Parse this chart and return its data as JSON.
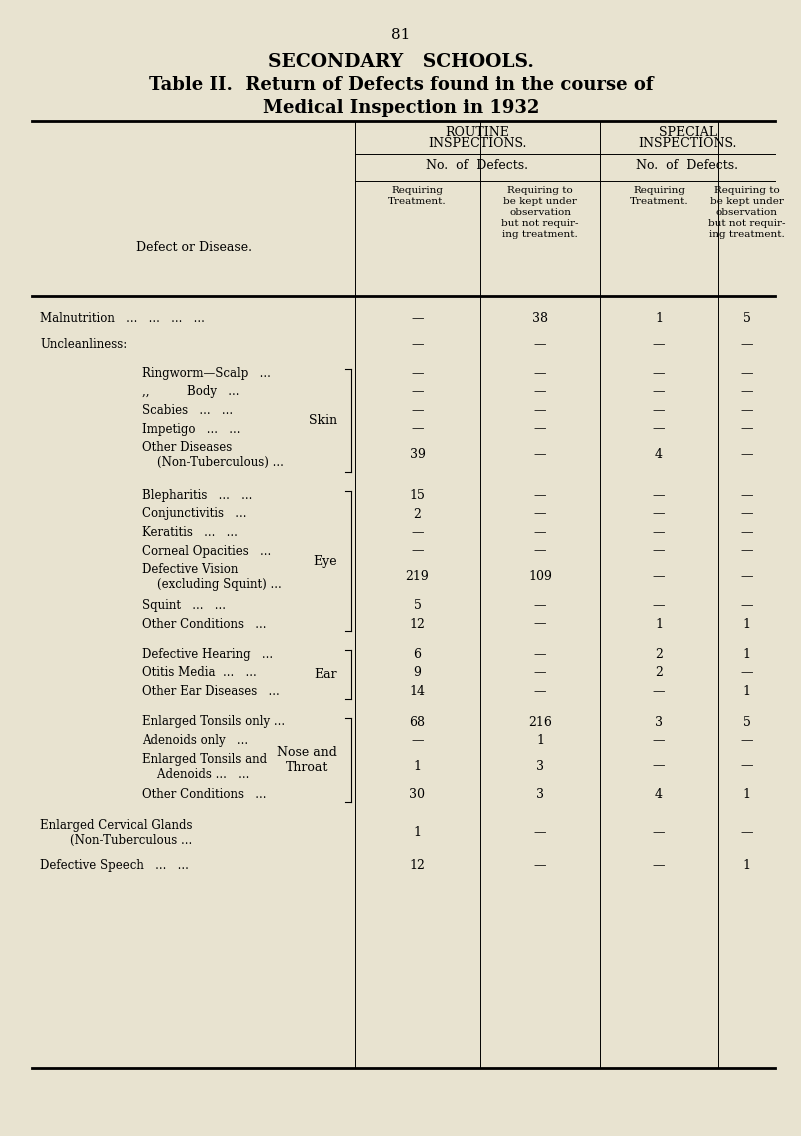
{
  "page_number": "81",
  "title1": "SECONDARY   SCHOOLS.",
  "title2": "Table II.  Return of Defects found in the course of",
  "title3": "Medical Inspection in 1932",
  "bg_color": "#e8e3d0",
  "rows": [
    {
      "label": "Malnutrition   ...   ...   ...   ...",
      "indent": false,
      "values": [
        "—",
        "38",
        "1",
        "5"
      ]
    },
    {
      "label": "Uncleanliness:",
      "indent": false,
      "values": [
        "—",
        "—",
        "—",
        "—"
      ]
    },
    {
      "label": "Ringworm—Scalp   ...",
      "indent": true,
      "values": [
        "—",
        "—",
        "—",
        "—"
      ]
    },
    {
      "label": ",,          Body   ...",
      "indent": true,
      "values": [
        "—",
        "—",
        "—",
        "—"
      ]
    },
    {
      "label": "Scabies   ...   ...",
      "indent": true,
      "values": [
        "—",
        "—",
        "—",
        "—"
      ]
    },
    {
      "label": "Impetigo   ...   ...",
      "indent": true,
      "values": [
        "—",
        "—",
        "—",
        "—"
      ]
    },
    {
      "label": "Other Diseases\n    (Non-Tuberculous) ...",
      "indent": true,
      "values": [
        "39",
        "—",
        "4",
        "—"
      ]
    },
    {
      "label": "Blepharitis   ...   ...",
      "indent": true,
      "values": [
        "15",
        "—",
        "—",
        "—"
      ]
    },
    {
      "label": "Conjunctivitis   ...",
      "indent": true,
      "values": [
        "2",
        "—",
        "—",
        "—"
      ]
    },
    {
      "label": "Keratitis   ...   ...",
      "indent": true,
      "values": [
        "—",
        "—",
        "—",
        "—"
      ]
    },
    {
      "label": "Corneal Opacities   ...",
      "indent": true,
      "values": [
        "—",
        "—",
        "—",
        "—"
      ]
    },
    {
      "label": "Defective Vision\n    (excluding Squint) ...",
      "indent": true,
      "values": [
        "219",
        "109",
        "—",
        "—"
      ]
    },
    {
      "label": "Squint   ...   ...",
      "indent": true,
      "values": [
        "5",
        "—",
        "—",
        "—"
      ]
    },
    {
      "label": "Other Conditions   ...",
      "indent": true,
      "values": [
        "12",
        "—",
        "1",
        "1"
      ]
    },
    {
      "label": "Defective Hearing   ...",
      "indent": true,
      "values": [
        "6",
        "—",
        "2",
        "1"
      ]
    },
    {
      "label": "Otitis Media  ...   ...",
      "indent": true,
      "values": [
        "9",
        "—",
        "2",
        "—"
      ]
    },
    {
      "label": "Other Ear Diseases   ...",
      "indent": true,
      "values": [
        "14",
        "—",
        "—",
        "1"
      ]
    },
    {
      "label": "Enlarged Tonsils only ...",
      "indent": true,
      "values": [
        "68",
        "216",
        "3",
        "5"
      ]
    },
    {
      "label": "Adenoids only   ...",
      "indent": true,
      "values": [
        "—",
        "1",
        "—",
        "—"
      ]
    },
    {
      "label": "Enlarged Tonsils and\n    Adenoids ...   ...",
      "indent": true,
      "values": [
        "1",
        "3",
        "—",
        "—"
      ]
    },
    {
      "label": "Other Conditions   ...",
      "indent": true,
      "values": [
        "30",
        "3",
        "4",
        "1"
      ]
    },
    {
      "label": "Enlarged Cervical Glands\n        (Non-Tuberculous ...",
      "indent": false,
      "values": [
        "1",
        "—",
        "—",
        "—"
      ]
    },
    {
      "label": "Defective Speech   ...   ...",
      "indent": false,
      "values": [
        "12",
        "—",
        "—",
        "1"
      ]
    }
  ],
  "groups": [
    {
      "label": "Skin",
      "start": 2,
      "end": 6
    },
    {
      "label": "Eye",
      "start": 7,
      "end": 13
    },
    {
      "label": "Ear",
      "start": 14,
      "end": 16
    },
    {
      "label": "Nose and\nThroat",
      "start": 17,
      "end": 20
    }
  ],
  "extra_space_before": {
    "0": 14,
    "1": 8,
    "2": 10,
    "7": 12,
    "14": 12,
    "17": 12,
    "21": 12,
    "22": 4
  }
}
